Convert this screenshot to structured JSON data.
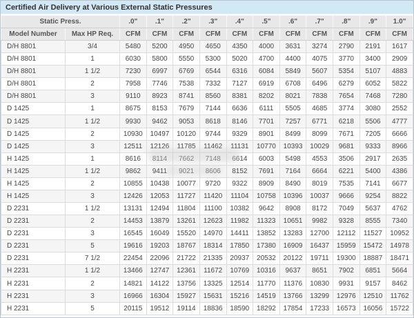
{
  "colors": {
    "title_bg": "#d3e8f5",
    "title_text": "#333333",
    "header_bg": "#e8e8e8",
    "header_text": "#555555",
    "row_alt_bg": "#f5f5f5",
    "row_bg": "#ffffff",
    "cell_text": "#464646"
  },
  "chart_data": {
    "type": "table",
    "title": "Certified Air Delivery at Various External Static Pressures",
    "header": {
      "static_press_label": "Static Press.",
      "model_col_label": "Model Number",
      "hp_col_label": "Max HP Req.",
      "pressures": [
        ".0\"",
        ".1\"",
        ".2\"",
        ".3\"",
        ".4\"",
        ".5\"",
        ".6\"",
        ".7\"",
        ".8\"",
        ".9\"",
        "1.0\""
      ],
      "unit_label": "CFM"
    },
    "rows": [
      {
        "model": "D/H 8801",
        "hp": "3/4",
        "cfm": [
          5480,
          5200,
          4950,
          4650,
          4350,
          4000,
          3631,
          3274,
          2790,
          2191,
          1617
        ]
      },
      {
        "model": "D/H 8801",
        "hp": "1",
        "cfm": [
          6030,
          5800,
          5550,
          5300,
          5020,
          4700,
          4400,
          4075,
          3770,
          3400,
          2909
        ]
      },
      {
        "model": "D/H 8801",
        "hp": "1 1/2",
        "cfm": [
          7230,
          6997,
          6769,
          6544,
          6316,
          6084,
          5849,
          5607,
          5354,
          5107,
          4883
        ]
      },
      {
        "model": "D/H 8801",
        "hp": "2",
        "cfm": [
          7958,
          7746,
          7538,
          7332,
          7127,
          6919,
          6708,
          6496,
          6279,
          6052,
          5822
        ]
      },
      {
        "model": "D/H 8801",
        "hp": "3",
        "cfm": [
          9110,
          8923,
          8741,
          8560,
          8381,
          8202,
          8021,
          7838,
          7654,
          7468,
          7280
        ]
      },
      {
        "model": "D 1425",
        "hp": "1",
        "cfm": [
          8675,
          8153,
          7679,
          7144,
          6636,
          6111,
          5505,
          4685,
          3774,
          3080,
          2552
        ]
      },
      {
        "model": "D 1425",
        "hp": "1 1/2",
        "cfm": [
          9930,
          9462,
          9053,
          8618,
          8146,
          7701,
          7257,
          6771,
          6218,
          5506,
          4777
        ]
      },
      {
        "model": "D 1425",
        "hp": "2",
        "cfm": [
          10930,
          10497,
          10120,
          9744,
          9329,
          8901,
          8499,
          8099,
          7671,
          7205,
          6666
        ]
      },
      {
        "model": "D 1425",
        "hp": "3",
        "cfm": [
          12511,
          12126,
          11785,
          11462,
          11131,
          10770,
          10393,
          10029,
          9681,
          9333,
          8966
        ]
      },
      {
        "model": "H 1425",
        "hp": "1",
        "cfm": [
          8616,
          8114,
          7662,
          7148,
          6614,
          6003,
          5498,
          4553,
          3506,
          2917,
          2635
        ]
      },
      {
        "model": "H 1425",
        "hp": "1 1/2",
        "cfm": [
          9862,
          9411,
          9021,
          8606,
          8152,
          7691,
          7164,
          6664,
          6221,
          5400,
          4386
        ]
      },
      {
        "model": "H 1425",
        "hp": "2",
        "cfm": [
          10855,
          10438,
          10077,
          9720,
          9322,
          8909,
          8490,
          8019,
          7535,
          7141,
          6677
        ]
      },
      {
        "model": "H 1425",
        "hp": "3",
        "cfm": [
          12426,
          12053,
          11727,
          11420,
          11104,
          10758,
          10396,
          10037,
          9666,
          9254,
          8822
        ]
      },
      {
        "model": "D 2231",
        "hp": "1 1/2",
        "cfm": [
          13131,
          12494,
          11804,
          11100,
          10382,
          9642,
          8908,
          8172,
          7049,
          5637,
          4762
        ]
      },
      {
        "model": "D 2231",
        "hp": "2",
        "cfm": [
          14453,
          13879,
          13261,
          12623,
          11982,
          11323,
          10651,
          9982,
          9328,
          8555,
          7340
        ]
      },
      {
        "model": "D 2231",
        "hp": "3",
        "cfm": [
          16545,
          16049,
          15520,
          14970,
          14411,
          13852,
          13283,
          12700,
          12112,
          11527,
          10952
        ]
      },
      {
        "model": "D 2231",
        "hp": "5",
        "cfm": [
          19616,
          19203,
          18767,
          18314,
          17850,
          17380,
          16909,
          16437,
          15959,
          15472,
          14978
        ]
      },
      {
        "model": "D 2231",
        "hp": "7 1/2",
        "cfm": [
          22454,
          22096,
          21722,
          21335,
          20937,
          20532,
          20122,
          19711,
          19300,
          18887,
          18471
        ]
      },
      {
        "model": "H 2231",
        "hp": "1 1/2",
        "cfm": [
          13466,
          12747,
          12361,
          11672,
          10769,
          10316,
          9637,
          8651,
          7902,
          6851,
          5664
        ]
      },
      {
        "model": "H 2231",
        "hp": "2",
        "cfm": [
          14821,
          14122,
          13756,
          13325,
          12514,
          11770,
          11376,
          10830,
          9931,
          9157,
          8462
        ]
      },
      {
        "model": "H 2231",
        "hp": "3",
        "cfm": [
          16966,
          16304,
          15927,
          15631,
          15216,
          14519,
          13766,
          13299,
          12976,
          12510,
          11762
        ]
      },
      {
        "model": "H 2231",
        "hp": "5",
        "cfm": [
          20115,
          19512,
          19114,
          18836,
          18590,
          18292,
          17854,
          17233,
          16573,
          16056,
          15722
        ]
      }
    ]
  }
}
